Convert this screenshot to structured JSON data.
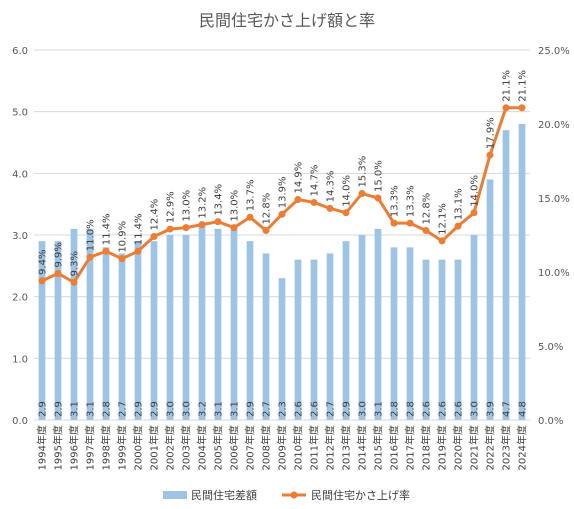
{
  "chart_data": {
    "type": "bar",
    "title": "民間住宅かさ上げ額と率",
    "categories": [
      "1994年度",
      "1995年度",
      "1996年度",
      "1997年度",
      "1998年度",
      "1999年度",
      "2000年度",
      "2001年度",
      "2002年度",
      "2003年度",
      "2004年度",
      "2005年度",
      "2006年度",
      "2007年度",
      "2008年度",
      "2009年度",
      "2010年度",
      "2011年度",
      "2012年度",
      "2013年度",
      "2014年度",
      "2015年度",
      "2016年度",
      "2017年度",
      "2018年度",
      "2019年度",
      "2020年度",
      "2021年度",
      "2022年度",
      "2023年度",
      "2024年度"
    ],
    "series": [
      {
        "name": "民間住宅差額",
        "type": "bar",
        "axis": "left",
        "color": "#9DC3E6",
        "values": [
          2.9,
          2.9,
          3.1,
          3.1,
          2.8,
          2.7,
          2.9,
          2.9,
          3.0,
          3.0,
          3.2,
          3.1,
          3.1,
          2.9,
          2.7,
          2.3,
          2.6,
          2.6,
          2.7,
          2.9,
          3.0,
          3.1,
          2.8,
          2.8,
          2.6,
          2.6,
          2.6,
          3.0,
          3.9,
          4.7,
          4.8
        ],
        "labels": [
          "2.9",
          "2.9",
          "3.1",
          "3.1",
          "2.8",
          "2.7",
          "2.9",
          "2.9",
          "3.0",
          "3.0",
          "3.2",
          "3.1",
          "3.1",
          "2.9",
          "2.7",
          "2.3",
          "2.6",
          "2.6",
          "2.7",
          "2.9",
          "3.0",
          "3.1",
          "2.8",
          "2.8",
          "2.6",
          "2.6",
          "2.6",
          "3.0",
          "3.9",
          "4.7",
          "4.8"
        ]
      },
      {
        "name": "民間住宅かさ上げ率",
        "type": "line",
        "axis": "right",
        "color": "#ED7D31",
        "values": [
          9.4,
          9.9,
          9.3,
          11.0,
          11.4,
          10.9,
          11.4,
          12.4,
          12.9,
          13.0,
          13.2,
          13.4,
          13.0,
          13.7,
          12.8,
          13.9,
          14.9,
          14.7,
          14.3,
          14.0,
          15.3,
          15.0,
          13.3,
          13.3,
          12.8,
          12.1,
          13.1,
          14.0,
          17.9,
          21.1,
          21.1
        ],
        "labels": [
          "9.4%",
          "9.9%",
          "9.3%",
          "11.0%",
          "11.4%",
          "10.9%",
          "11.4%",
          "12.4%",
          "12.9%",
          "13.0%",
          "13.2%",
          "13.4%",
          "13.0%",
          "13.7%",
          "12.8%",
          "13.9%",
          "14.9%",
          "14.7%",
          "14.3%",
          "14.0%",
          "15.3%",
          "15.0%",
          "13.3%",
          "13.3%",
          "12.8%",
          "12.1%",
          "13.1%",
          "14.0%",
          "17.9%",
          "21.1%",
          "21.1%"
        ]
      }
    ],
    "y_left": {
      "min": 0,
      "max": 6,
      "ticks": [
        "0.0",
        "1.0",
        "2.0",
        "3.0",
        "4.0",
        "5.0",
        "6.0"
      ]
    },
    "y_right": {
      "min": 0,
      "max": 25,
      "ticks": [
        "0.0%",
        "5.0%",
        "10.0%",
        "15.0%",
        "20.0%",
        "25.0%"
      ]
    },
    "grid": true,
    "legend_position": "bottom"
  }
}
